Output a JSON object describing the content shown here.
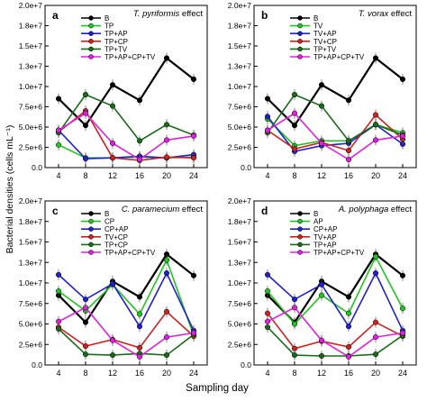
{
  "figure": {
    "ylabel": "Bacterial densities (cells mL⁻¹)",
    "xlabel": "Sampling day"
  },
  "chart_data": [
    {
      "type": "line",
      "panel_letter": "a",
      "title": "T. pyriformis effect",
      "x": [
        4,
        8,
        12,
        16,
        20,
        24
      ],
      "ylim": [
        0,
        20000000
      ],
      "yticks": [
        "0.0",
        "2.5e+6",
        "5.0e+6",
        "7.5e+6",
        "1.0e+7",
        "1.3e+7",
        "1.5e+7",
        "1.8e+7",
        "2.0e+7"
      ],
      "legend_position": "top-left",
      "series": [
        {
          "name": "B",
          "color": "#000000",
          "values": [
            8500000,
            5200000,
            10200000,
            8300000,
            13500000,
            10900000
          ]
        },
        {
          "name": "TP",
          "color": "#22c322",
          "values": [
            2800000,
            1200000,
            1200000,
            1300000,
            1200000,
            1300000
          ]
        },
        {
          "name": "TP+AP",
          "color": "#2020d0",
          "values": [
            4600000,
            1100000,
            1200000,
            1400000,
            1200000,
            1600000
          ]
        },
        {
          "name": "TP+CP",
          "color": "#d02020",
          "values": [
            4400000,
            7000000,
            1200000,
            900000,
            1300000,
            1200000
          ]
        },
        {
          "name": "TP+TV",
          "color": "#1a6b1a",
          "values": [
            4300000,
            9000000,
            7600000,
            3300000,
            5300000,
            4000000
          ]
        },
        {
          "name": "TP+AP+CP+TV",
          "color": "#e020e0",
          "values": [
            4600000,
            6700000,
            3000000,
            1000000,
            3400000,
            3900000
          ]
        }
      ]
    },
    {
      "type": "line",
      "panel_letter": "b",
      "title": "T. vorax effect",
      "x": [
        4,
        8,
        12,
        16,
        20,
        24
      ],
      "ylim": [
        0,
        20000000
      ],
      "yticks": [
        "0.0",
        "2.5e+6",
        "5.0e+6",
        "7.5e+6",
        "1.0e+7",
        "1.3e+7",
        "1.5e+7",
        "1.8e+7",
        "2.0e+7"
      ],
      "legend_position": "top-left",
      "series": [
        {
          "name": "B",
          "color": "#000000",
          "values": [
            8500000,
            5200000,
            10200000,
            8300000,
            13500000,
            10900000
          ]
        },
        {
          "name": "TV",
          "color": "#22c322",
          "values": [
            6000000,
            2700000,
            3300000,
            3300000,
            5300000,
            4300000
          ]
        },
        {
          "name": "TV+AP",
          "color": "#2020d0",
          "values": [
            6300000,
            2000000,
            2700000,
            3000000,
            5300000,
            2900000
          ]
        },
        {
          "name": "TV+CP",
          "color": "#d02020",
          "values": [
            4600000,
            2300000,
            3100000,
            2100000,
            6500000,
            3500000
          ]
        },
        {
          "name": "TP+TV",
          "color": "#1a6b1a",
          "values": [
            4300000,
            9000000,
            7600000,
            3300000,
            5300000,
            4000000
          ]
        },
        {
          "name": "TP+AP+CP+TV",
          "color": "#e020e0",
          "values": [
            4600000,
            6700000,
            3000000,
            1000000,
            3400000,
            3900000
          ]
        }
      ]
    },
    {
      "type": "line",
      "panel_letter": "c",
      "title": "C. paramecium effect",
      "x": [
        4,
        8,
        12,
        16,
        20,
        24
      ],
      "ylim": [
        0,
        20000000
      ],
      "yticks": [
        "0.0",
        "2.5e+6",
        "5.0e+6",
        "7.5e+6",
        "1.0e+7",
        "1.3e+7",
        "1.5e+7",
        "1.8e+7",
        "2.0e+7"
      ],
      "legend_position": "top-left",
      "series": [
        {
          "name": "B",
          "color": "#000000",
          "values": [
            8500000,
            5200000,
            10200000,
            8300000,
            13500000,
            10900000
          ]
        },
        {
          "name": "CP",
          "color": "#22c322",
          "values": [
            9000000,
            6600000,
            9800000,
            6200000,
            12800000,
            3600000
          ]
        },
        {
          "name": "CP+AP",
          "color": "#2020d0",
          "values": [
            11000000,
            8000000,
            9900000,
            4700000,
            11200000,
            4200000
          ]
        },
        {
          "name": "TV+CP",
          "color": "#d02020",
          "values": [
            4600000,
            2300000,
            3100000,
            2100000,
            6500000,
            3500000
          ]
        },
        {
          "name": "TP+CP",
          "color": "#1a6b1a",
          "values": [
            4400000,
            1300000,
            1200000,
            1400000,
            1200000,
            3700000
          ]
        },
        {
          "name": "TP+AP+CP+TV",
          "color": "#e020e0",
          "values": [
            5300000,
            7000000,
            3000000,
            1000000,
            3400000,
            3900000
          ]
        }
      ]
    },
    {
      "type": "line",
      "panel_letter": "d",
      "title": "A. polyphaga effect",
      "x": [
        4,
        8,
        12,
        16,
        20,
        24
      ],
      "ylim": [
        0,
        20000000
      ],
      "yticks": [
        "0.0",
        "2.5e+6",
        "5.0e+6",
        "7.5e+6",
        "1.0e+7",
        "1.3e+7",
        "1.5e+7",
        "1.8e+7",
        "2.0e+7"
      ],
      "legend_position": "top-left",
      "series": [
        {
          "name": "B",
          "color": "#000000",
          "values": [
            8500000,
            5200000,
            10200000,
            8300000,
            13500000,
            10900000
          ]
        },
        {
          "name": "AP",
          "color": "#22c322",
          "values": [
            9000000,
            5000000,
            8500000,
            6300000,
            13200000,
            6900000
          ]
        },
        {
          "name": "CP+AP",
          "color": "#2020d0",
          "values": [
            11000000,
            8000000,
            9800000,
            4700000,
            11200000,
            4200000
          ]
        },
        {
          "name": "TV+AP",
          "color": "#d02020",
          "values": [
            6300000,
            2000000,
            2900000,
            2200000,
            5200000,
            3500000
          ]
        },
        {
          "name": "TP+AP",
          "color": "#1a6b1a",
          "values": [
            4600000,
            1200000,
            1100000,
            1100000,
            1300000,
            3600000
          ]
        },
        {
          "name": "TP+AP+CP+TV",
          "color": "#e020e0",
          "values": [
            5300000,
            7000000,
            3000000,
            1000000,
            3400000,
            3900000
          ]
        }
      ]
    }
  ]
}
